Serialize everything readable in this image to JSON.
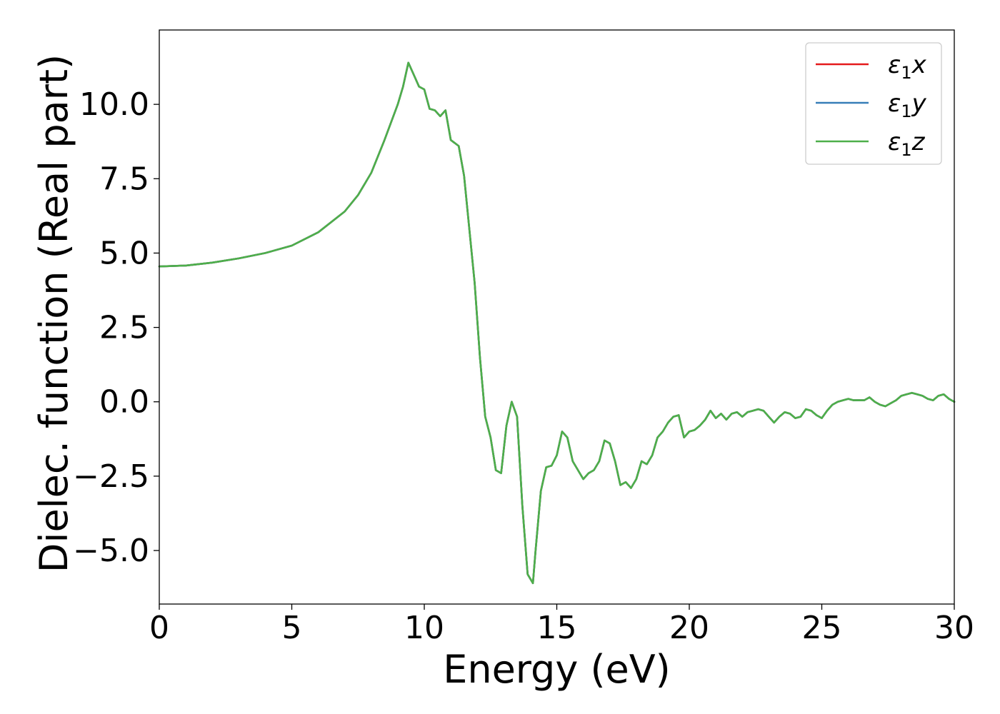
{
  "chart_data": {
    "type": "line",
    "title": "",
    "xlabel": "Energy (eV)",
    "ylabel": "Dielec. function (Real part)",
    "xlim": [
      0,
      30
    ],
    "ylim": [
      -6.8,
      12.5
    ],
    "xticks": [
      {
        "value": 0,
        "label": "0"
      },
      {
        "value": 5,
        "label": "5"
      },
      {
        "value": 10,
        "label": "10"
      },
      {
        "value": 15,
        "label": "15"
      },
      {
        "value": 20,
        "label": "20"
      },
      {
        "value": 25,
        "label": "25"
      },
      {
        "value": 30,
        "label": "30"
      }
    ],
    "yticks": [
      {
        "value": -5,
        "label": "−5.0"
      },
      {
        "value": -2.5,
        "label": "−2.5"
      },
      {
        "value": 0,
        "label": "0.0"
      },
      {
        "value": 2.5,
        "label": "2.5"
      },
      {
        "value": 5,
        "label": "5.0"
      },
      {
        "value": 7.5,
        "label": "7.5"
      },
      {
        "value": 10,
        "label": "10.0"
      }
    ],
    "grid": false,
    "legend_position": "top-right",
    "x": [
      0,
      1,
      2,
      3,
      4,
      5,
      6,
      7,
      7.5,
      8,
      8.5,
      9,
      9.2,
      9.4,
      9.6,
      9.8,
      10.0,
      10.2,
      10.4,
      10.6,
      10.8,
      11.0,
      11.3,
      11.5,
      11.7,
      11.9,
      12.1,
      12.3,
      12.5,
      12.7,
      12.9,
      13.1,
      13.3,
      13.5,
      13.7,
      13.9,
      14.1,
      14.2,
      14.4,
      14.6,
      14.8,
      15.0,
      15.2,
      15.4,
      15.6,
      15.8,
      16.0,
      16.2,
      16.4,
      16.6,
      16.8,
      17.0,
      17.2,
      17.4,
      17.6,
      17.8,
      18.0,
      18.2,
      18.4,
      18.6,
      18.8,
      19.0,
      19.2,
      19.4,
      19.6,
      19.8,
      20.0,
      20.2,
      20.4,
      20.6,
      20.8,
      21.0,
      21.2,
      21.4,
      21.6,
      21.8,
      22.0,
      22.2,
      22.4,
      22.6,
      22.8,
      23.0,
      23.2,
      23.4,
      23.6,
      23.8,
      24.0,
      24.2,
      24.4,
      24.6,
      24.8,
      25.0,
      25.2,
      25.4,
      25.6,
      25.8,
      26.0,
      26.2,
      26.4,
      26.6,
      26.8,
      27.0,
      27.2,
      27.4,
      27.6,
      27.8,
      28.0,
      28.2,
      28.4,
      28.6,
      28.8,
      29.0,
      29.2,
      29.4,
      29.6,
      29.8,
      30.0
    ],
    "y": [
      4.55,
      4.58,
      4.68,
      4.82,
      5.0,
      5.25,
      5.7,
      6.4,
      6.95,
      7.7,
      8.8,
      10.0,
      10.6,
      11.4,
      11.0,
      10.6,
      10.5,
      9.85,
      9.8,
      9.6,
      9.8,
      8.8,
      8.6,
      7.6,
      5.8,
      4.0,
      1.5,
      -0.5,
      -1.2,
      -2.3,
      -2.4,
      -0.8,
      0.0,
      -0.5,
      -3.5,
      -5.8,
      -6.1,
      -5.0,
      -3.0,
      -2.2,
      -2.15,
      -1.8,
      -1.0,
      -1.2,
      -2.0,
      -2.3,
      -2.6,
      -2.4,
      -2.3,
      -2.0,
      -1.3,
      -1.4,
      -2.0,
      -2.8,
      -2.7,
      -2.9,
      -2.6,
      -2.0,
      -2.1,
      -1.8,
      -1.2,
      -1.0,
      -0.7,
      -0.5,
      -0.45,
      -1.2,
      -1.0,
      -0.95,
      -0.8,
      -0.6,
      -0.3,
      -0.55,
      -0.4,
      -0.6,
      -0.4,
      -0.35,
      -0.5,
      -0.35,
      -0.3,
      -0.25,
      -0.3,
      -0.5,
      -0.7,
      -0.5,
      -0.35,
      -0.4,
      -0.55,
      -0.5,
      -0.25,
      -0.3,
      -0.45,
      -0.55,
      -0.3,
      -0.1,
      0.0,
      0.05,
      0.1,
      0.05,
      0.05,
      0.05,
      0.15,
      0.0,
      -0.1,
      -0.15,
      -0.05,
      0.05,
      0.2,
      0.25,
      0.3,
      0.25,
      0.2,
      0.1,
      0.05,
      0.2,
      0.25,
      0.1,
      0.0
    ],
    "series": [
      {
        "name": "ε₁x",
        "base": "ε",
        "sub": "1",
        "var": "x",
        "color": "#e41a1c"
      },
      {
        "name": "ε₁y",
        "base": "ε",
        "sub": "1",
        "var": "y",
        "color": "#377eb8"
      },
      {
        "name": "ε₁z",
        "base": "ε",
        "sub": "1",
        "var": "z",
        "color": "#4daf4a"
      }
    ]
  }
}
